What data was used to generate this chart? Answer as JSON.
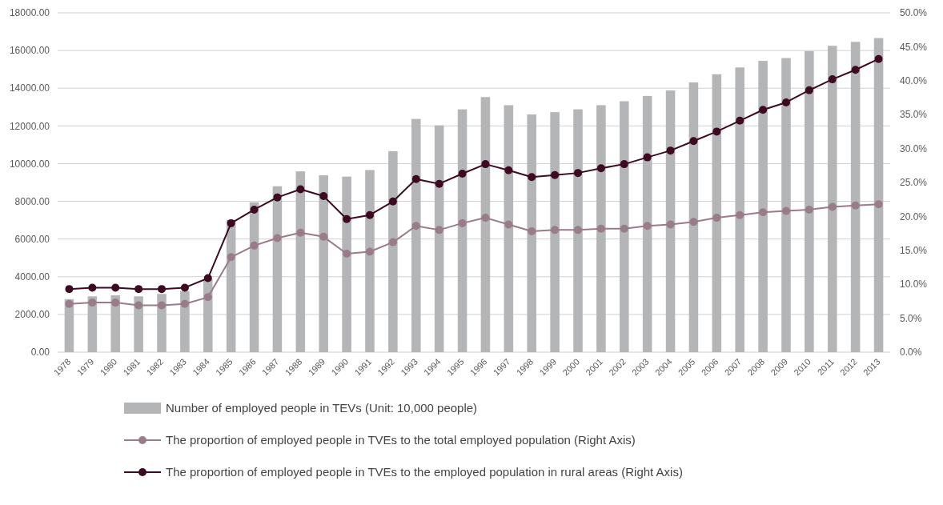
{
  "chart_data": {
    "type": "bar",
    "categories": [
      "1978",
      "1979",
      "1980",
      "1981",
      "1982",
      "1983",
      "1984",
      "1985",
      "1986",
      "1987",
      "1988",
      "1989",
      "1990",
      "1991",
      "1992",
      "1993",
      "1994",
      "1995",
      "1996",
      "1997",
      "1998",
      "1999",
      "2000",
      "2001",
      "2002",
      "2003",
      "2004",
      "2005",
      "2006",
      "2007",
      "2008",
      "2009",
      "2010",
      "2011",
      "2012",
      "2013"
    ],
    "series": [
      {
        "name": "Number of employed people in TEVs (Unit: 10,000 people)",
        "color": "#b4b5b7",
        "values": [
          2810,
          2960,
          3020,
          2960,
          3090,
          3240,
          3880,
          7020,
          7950,
          8800,
          9590,
          9380,
          9310,
          9660,
          10660,
          12370,
          12030,
          12880,
          13530,
          13100,
          12610,
          12730,
          12880,
          13100,
          13310,
          13590,
          13880,
          14310,
          14740,
          15100,
          15450,
          15600,
          15970,
          16250,
          16460,
          16660
        ]
      },
      {
        "name": "The proportion of employed people in TVEs to the total employed population (Right Axis)",
        "type": "line",
        "axis": "y2",
        "color": "#9a7b8a",
        "values": [
          7.1,
          7.3,
          7.3,
          6.9,
          6.9,
          7.1,
          8.1,
          14.0,
          15.7,
          16.8,
          17.6,
          17.0,
          14.5,
          14.8,
          16.2,
          18.6,
          18.0,
          19.0,
          19.8,
          18.8,
          17.8,
          18.0,
          18.0,
          18.2,
          18.2,
          18.6,
          18.8,
          19.2,
          19.8,
          20.2,
          20.6,
          20.8,
          21.0,
          21.4,
          21.6,
          21.8
        ]
      },
      {
        "name": "The proportion of employed people in TVEs to the employed population in rural areas (Right Axis)",
        "type": "line",
        "axis": "y2",
        "color": "#3d0a22",
        "values": [
          9.3,
          9.5,
          9.5,
          9.3,
          9.3,
          9.5,
          10.9,
          19.0,
          21.0,
          22.8,
          24.0,
          23.0,
          19.6,
          20.2,
          22.2,
          25.5,
          24.8,
          26.3,
          27.7,
          26.8,
          25.8,
          26.1,
          26.4,
          27.1,
          27.7,
          28.7,
          29.7,
          31.1,
          32.5,
          34.1,
          35.7,
          36.8,
          38.6,
          40.2,
          41.6,
          43.2
        ]
      }
    ],
    "ylim": [
      0,
      18000
    ],
    "yticks": [
      {
        "value": 0,
        "label": "0.00"
      },
      {
        "value": 2000,
        "label": "2000.00"
      },
      {
        "value": 4000,
        "label": "4000.00"
      },
      {
        "value": 6000,
        "label": "6000.00"
      },
      {
        "value": 8000,
        "label": "8000.00"
      },
      {
        "value": 10000,
        "label": "10000.00"
      },
      {
        "value": 12000,
        "label": "12000.00"
      },
      {
        "value": 14000,
        "label": "14000.00"
      },
      {
        "value": 16000,
        "label": "16000.00"
      },
      {
        "value": 18000,
        "label": "18000.00"
      }
    ],
    "y2lim": [
      0,
      50
    ],
    "y2ticks": [
      {
        "value": 0,
        "label": "0.0%"
      },
      {
        "value": 5,
        "label": "5.0%"
      },
      {
        "value": 10,
        "label": "10.0%"
      },
      {
        "value": 15,
        "label": "15.0%"
      },
      {
        "value": 20,
        "label": "20.0%"
      },
      {
        "value": 25,
        "label": "25.0%"
      },
      {
        "value": 30,
        "label": "30.0%"
      },
      {
        "value": 35,
        "label": "35.0%"
      },
      {
        "value": 40,
        "label": "40.0%"
      },
      {
        "value": 45,
        "label": "45.0%"
      },
      {
        "value": 50,
        "label": "50.0%"
      }
    ],
    "grid": "y",
    "legend": "bottom",
    "marker": "circle"
  }
}
